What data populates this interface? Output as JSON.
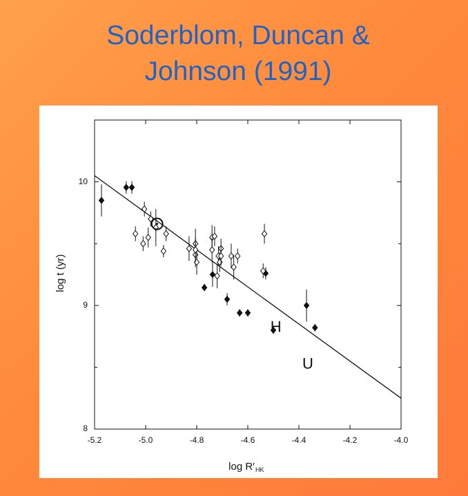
{
  "chart_data": {
    "type": "scatter",
    "title": [
      "Soderblom, Duncan &",
      "Johnson (1991)"
    ],
    "xlabel": "log R′",
    "xlabel_sub": "HK",
    "ylabel": "log t (yr)",
    "xlim": [
      -5.2,
      -4.0
    ],
    "ylim": [
      8,
      10.5
    ],
    "xticks": [
      -5.2,
      {
        "value": -5.0,
        "label": "-5.0"
      },
      -4.8,
      -4.6,
      -4.4,
      -4.2,
      {
        "value": -4.0,
        "label": "-4.0"
      }
    ],
    "yticks": [
      8,
      9,
      10
    ],
    "yminor": [
      8.5,
      9.5
    ],
    "color": "#111111",
    "series": [
      {
        "marker": "filled",
        "x": [
          -5.173,
          -5.076,
          -5.054,
          -4.77,
          -4.738,
          -4.681,
          -4.632,
          -4.6,
          -4.53,
          -4.5,
          -4.37,
          -4.337
        ],
        "values": [
          9.85,
          9.955,
          9.955,
          9.145,
          9.25,
          9.05,
          8.94,
          8.94,
          9.26,
          8.8,
          9.0,
          8.82
        ],
        "errors": [
          0.13,
          0.05,
          0.05,
          0.03,
          0.1,
          0.05,
          0.03,
          0.03,
          0.05,
          0.03,
          0.13,
          0.03
        ]
      },
      {
        "marker": "open",
        "x": [
          -5.04,
          -5.01,
          -5.005,
          -4.99,
          -4.98,
          -4.96,
          -4.93,
          -4.92,
          -4.83,
          -4.805,
          -4.805,
          -4.8,
          -4.805,
          -4.74,
          -4.74,
          -4.73,
          -4.72,
          -4.715,
          -4.71,
          -4.705,
          -4.705,
          -4.665,
          -4.655,
          -4.64,
          -4.535,
          -4.54
        ],
        "values": [
          9.58,
          9.5,
          9.78,
          9.55,
          9.7,
          9.63,
          9.44,
          9.58,
          9.46,
          9.5,
          9.41,
          9.35,
          9.45,
          9.55,
          9.45,
          9.56,
          9.24,
          9.4,
          9.35,
          9.46,
          9.4,
          9.4,
          9.31,
          9.4,
          9.58,
          9.28
        ],
        "errors": [
          0.06,
          0.06,
          0.06,
          0.08,
          0.06,
          0.15,
          0.05,
          0.06,
          0.1,
          0.12,
          0.1,
          0.1,
          0.1,
          0.1,
          0.1,
          0.08,
          0.1,
          0.08,
          0.08,
          0.08,
          0.08,
          0.1,
          0.1,
          0.06,
          0.08,
          0.06
        ]
      }
    ],
    "sun": {
      "x": -4.955,
      "y": 9.66
    },
    "fit": {
      "x": [
        -5.2,
        -4.0
      ],
      "values": [
        10.05,
        8.25
      ]
    },
    "annotations": [
      {
        "text": "H",
        "x": -4.49,
        "y": 8.82
      },
      {
        "text": "U",
        "x": -4.365,
        "y": 8.52
      }
    ]
  }
}
